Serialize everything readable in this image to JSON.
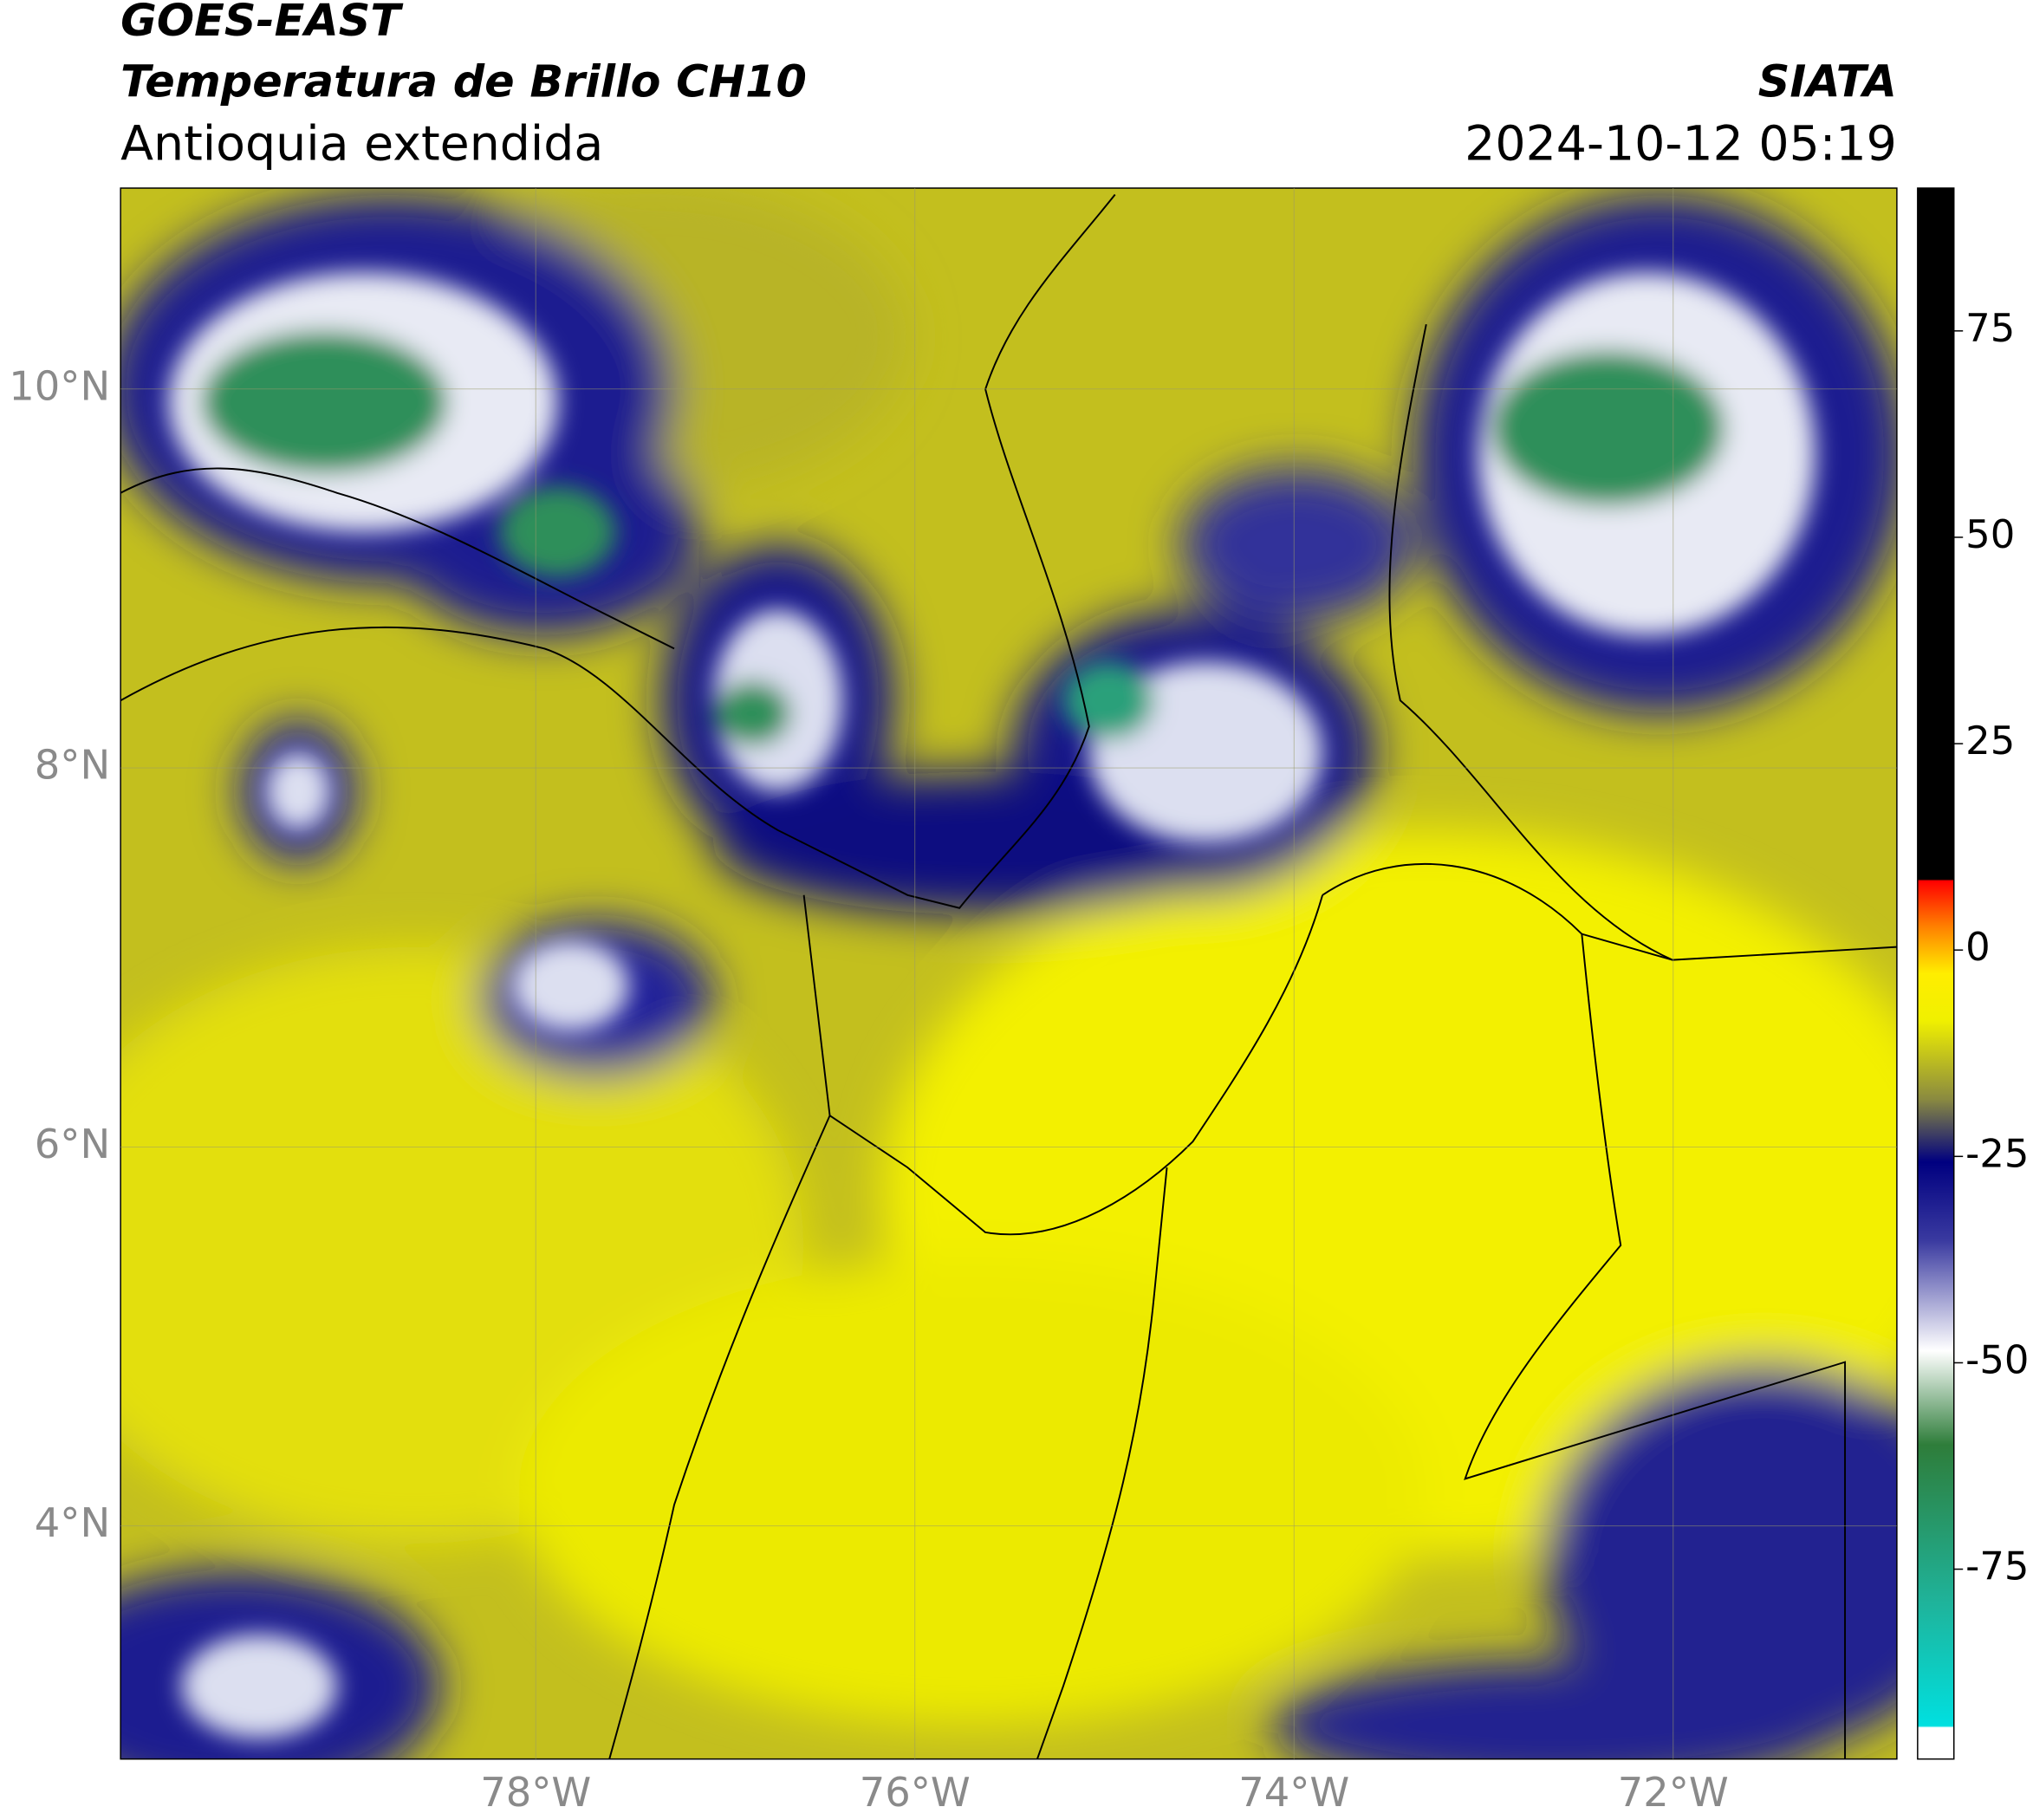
{
  "header": {
    "title": "GOES-EAST",
    "subtitle": "Temperatura de Brillo CH10",
    "region": "Antioquia extendida",
    "source": "SIATA",
    "timestamp": "2024-10-12 05:19"
  },
  "map": {
    "xlim": [
      -80.19,
      -70.82
    ],
    "ylim": [
      2.77,
      11.06
    ],
    "grid": true,
    "xticks": [
      {
        "value": -78,
        "label": "78°W"
      },
      {
        "value": -76,
        "label": "76°W"
      },
      {
        "value": -74,
        "label": "74°W"
      },
      {
        "value": -72,
        "label": "72°W"
      }
    ],
    "yticks": [
      {
        "value": 4,
        "label": "4°N"
      },
      {
        "value": 6,
        "label": "6°N"
      },
      {
        "value": 8,
        "label": "8°N"
      },
      {
        "value": 10,
        "label": "10°N"
      }
    ]
  },
  "colorbar": {
    "lim": [
      -98,
      92.3
    ],
    "ticks": [
      75,
      50,
      25,
      0,
      -25,
      -50,
      -75
    ]
  }
}
